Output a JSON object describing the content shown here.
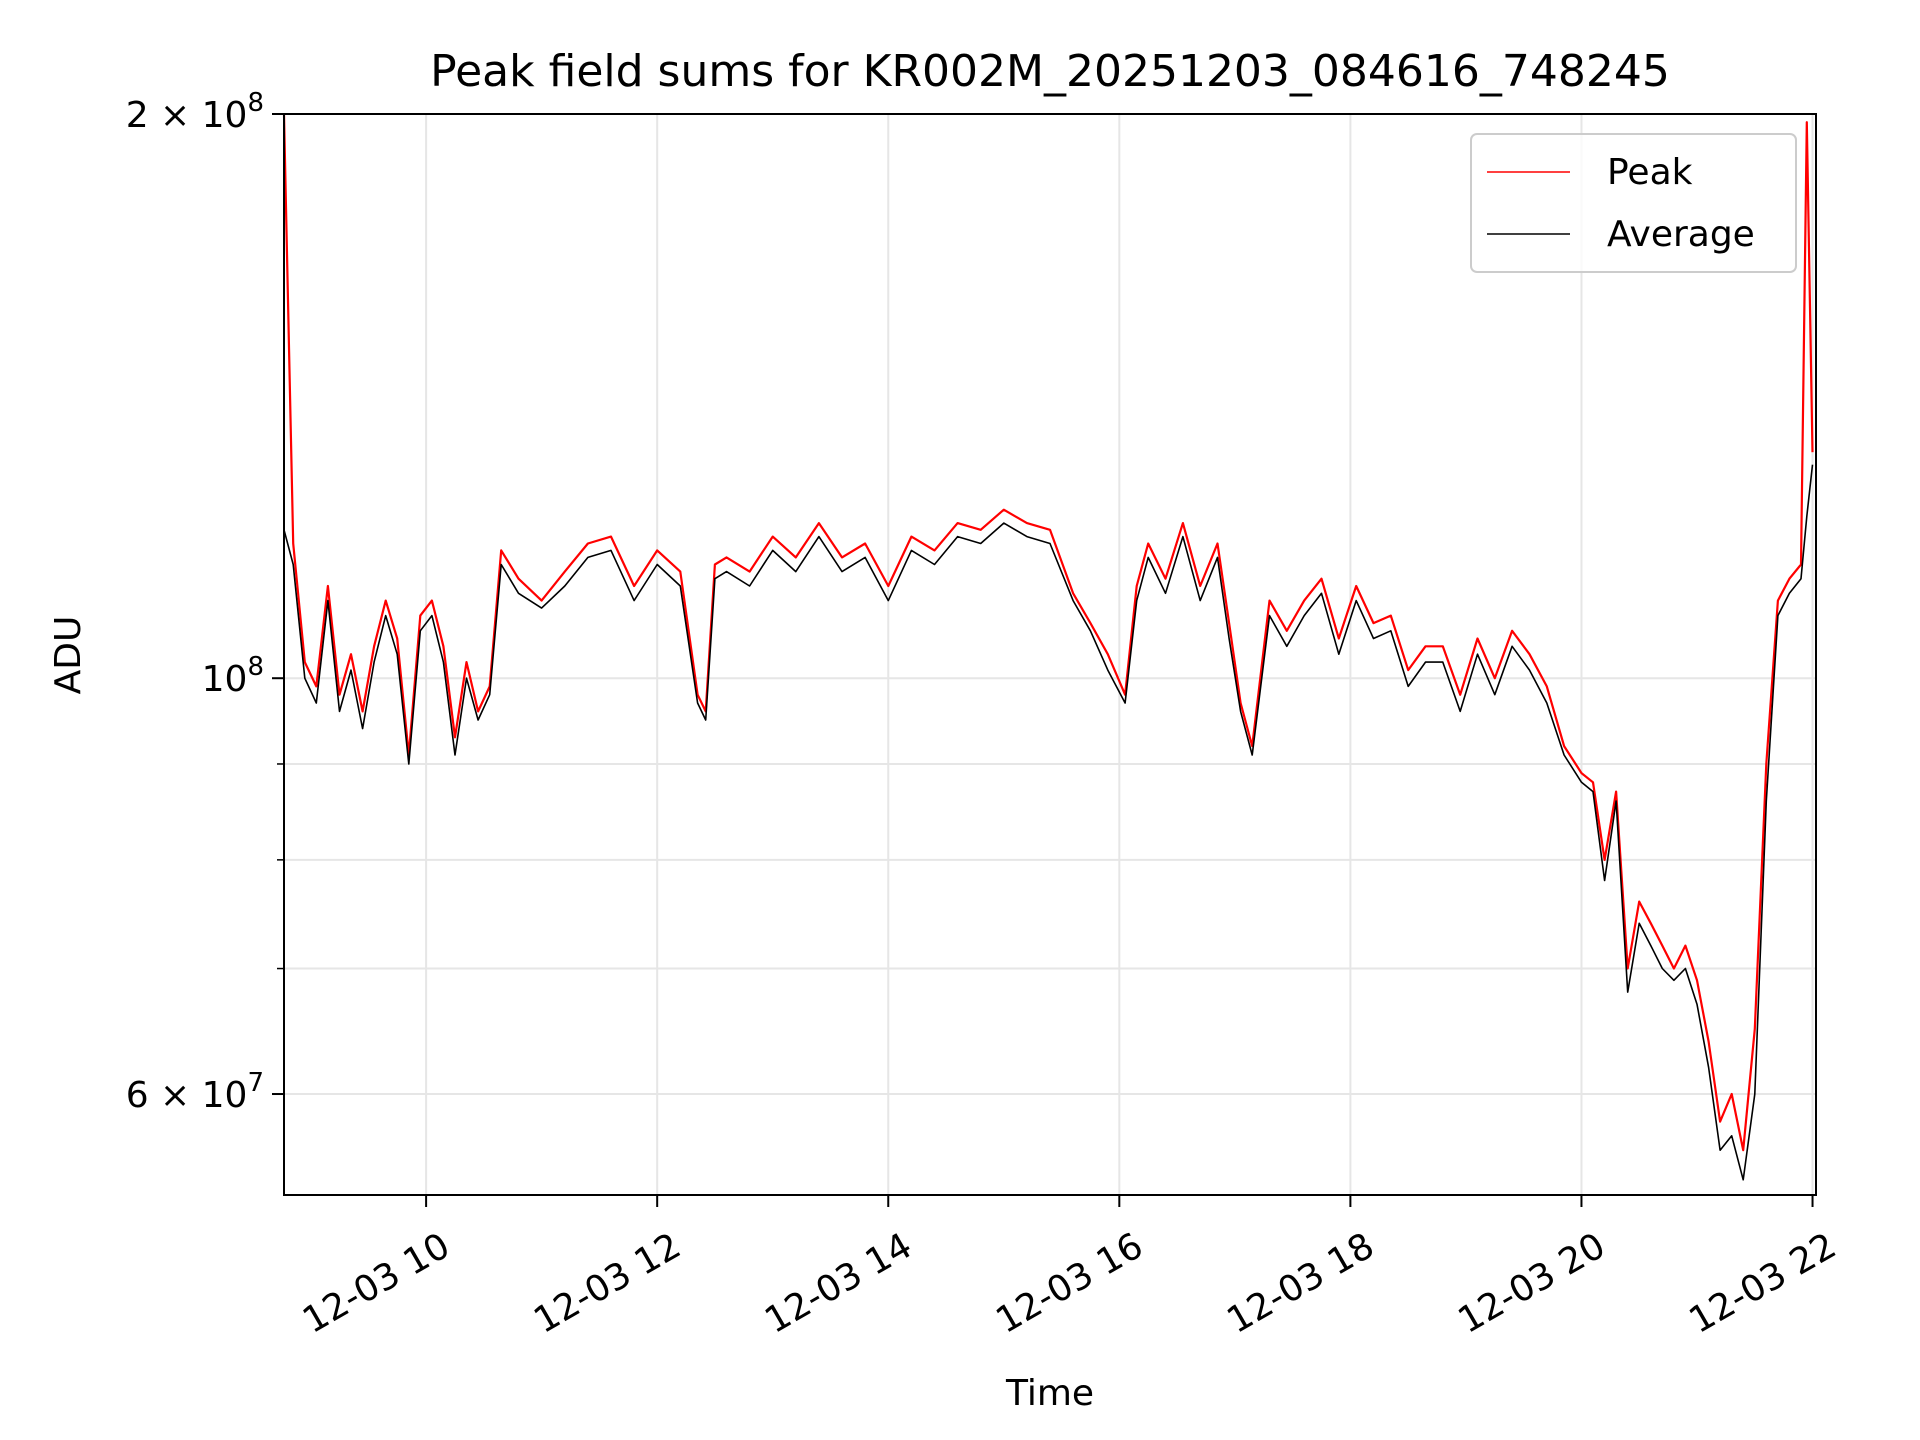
{
  "chart_data": {
    "type": "line",
    "title": "Peak field sums for KR002M_20251203_084616_748245",
    "xlabel": "Time",
    "ylabel": "ADU",
    "yscale": "log",
    "ylim": [
      53000000,
      200000000
    ],
    "xlim_hours": [
      8.77,
      22.03
    ],
    "grid": true,
    "legend_position": "upper right",
    "x_ticks": [
      {
        "hour": 10,
        "label": "12-03 10"
      },
      {
        "hour": 12,
        "label": "12-03 12"
      },
      {
        "hour": 14,
        "label": "12-03 14"
      },
      {
        "hour": 16,
        "label": "12-03 16"
      },
      {
        "hour": 18,
        "label": "12-03 18"
      },
      {
        "hour": 20,
        "label": "12-03 20"
      },
      {
        "hour": 22,
        "label": "12-03 22"
      }
    ],
    "y_major_ticks": [
      {
        "value": 100000000,
        "base": "10",
        "exp": "8",
        "coef": ""
      },
      {
        "value": 60000000,
        "base": "10",
        "exp": "7",
        "coef": "6"
      },
      {
        "value": 200000000,
        "base": "10",
        "exp": "8",
        "coef": "2"
      }
    ],
    "y_minor_ticks": [
      70000000,
      80000000,
      90000000
    ],
    "x_hours": [
      8.77,
      8.85,
      8.95,
      9.05,
      9.15,
      9.25,
      9.35,
      9.45,
      9.55,
      9.65,
      9.75,
      9.85,
      9.95,
      10.05,
      10.15,
      10.25,
      10.35,
      10.45,
      10.55,
      10.65,
      10.8,
      11.0,
      11.2,
      11.4,
      11.6,
      11.8,
      12.0,
      12.2,
      12.35,
      12.42,
      12.5,
      12.6,
      12.8,
      13.0,
      13.2,
      13.4,
      13.6,
      13.8,
      14.0,
      14.2,
      14.4,
      14.6,
      14.8,
      15.0,
      15.2,
      15.4,
      15.6,
      15.75,
      15.9,
      16.05,
      16.15,
      16.25,
      16.4,
      16.55,
      16.7,
      16.85,
      16.95,
      17.05,
      17.15,
      17.3,
      17.45,
      17.6,
      17.75,
      17.9,
      18.05,
      18.2,
      18.35,
      18.5,
      18.65,
      18.8,
      18.95,
      19.1,
      19.25,
      19.4,
      19.55,
      19.7,
      19.85,
      20.0,
      20.1,
      20.2,
      20.3,
      20.4,
      20.5,
      20.6,
      20.7,
      20.8,
      20.9,
      21.0,
      21.1,
      21.2,
      21.3,
      21.4,
      21.5,
      21.6,
      21.7,
      21.8,
      21.9,
      21.95,
      22.0
    ],
    "series": [
      {
        "name": "Peak",
        "color": "#ff0000",
        "values": [
          200,
          118,
          102,
          99,
          112,
          98,
          103,
          96,
          104,
          110,
          105,
          91,
          108,
          110,
          104,
          93,
          102,
          96,
          99,
          117,
          113,
          110,
          114,
          118,
          119,
          112,
          117,
          114,
          98,
          96,
          115,
          116,
          114,
          119,
          116,
          121,
          116,
          118,
          112,
          119,
          117,
          121,
          120,
          123,
          121,
          120,
          111,
          107,
          103,
          98,
          112,
          118,
          113,
          121,
          112,
          118,
          107,
          97,
          92,
          110,
          106,
          110,
          113,
          105,
          112,
          107,
          108,
          101,
          104,
          104,
          98,
          105,
          100,
          106,
          103,
          99,
          92,
          89,
          88,
          80,
          87,
          70,
          76,
          74,
          72,
          70,
          72,
          69,
          64,
          58,
          60,
          56,
          65,
          90,
          110,
          113,
          115,
          198,
          132
        ]
      },
      {
        "name": "Average",
        "color": "#000000",
        "values": [
          120,
          115,
          100,
          97,
          110,
          96,
          101,
          94,
          102,
          108,
          103,
          90,
          106,
          108,
          102,
          91,
          100,
          95,
          98,
          115,
          111,
          109,
          112,
          116,
          117,
          110,
          115,
          112,
          97,
          95,
          113,
          114,
          112,
          117,
          114,
          119,
          114,
          116,
          110,
          117,
          115,
          119,
          118,
          121,
          119,
          118,
          110,
          106,
          101,
          97,
          110,
          116,
          111,
          119,
          110,
          116,
          105,
          96,
          91,
          108,
          104,
          108,
          111,
          103,
          110,
          105,
          106,
          99,
          102,
          102,
          96,
          103,
          98,
          104,
          101,
          97,
          91,
          88,
          87,
          78,
          86,
          68,
          74,
          72,
          70,
          69,
          70,
          67,
          62,
          56,
          57,
          54,
          60,
          86,
          108,
          111,
          113,
          122,
          130
        ]
      }
    ],
    "values_unit": "millions ADU"
  }
}
